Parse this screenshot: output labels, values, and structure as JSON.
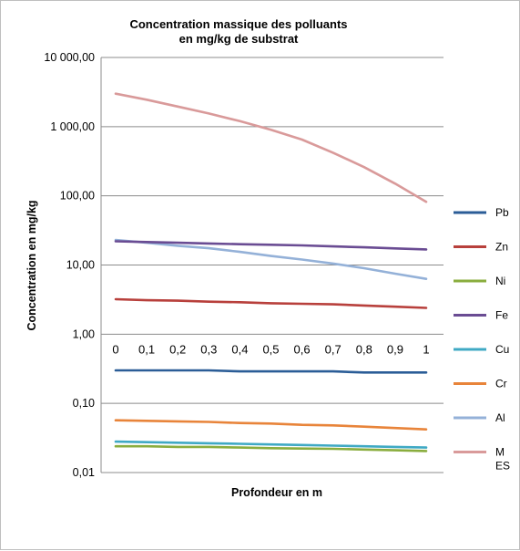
{
  "chart_data": {
    "type": "line",
    "title": "Concentration massique des polluants",
    "subtitle": "en mg/kg de substrat",
    "xlabel": "Profondeur en m",
    "ylabel": "Concentration en mg/kg",
    "y_scale": "log",
    "ylim": [
      0.01,
      10000
    ],
    "y_ticks": [
      10000,
      1000,
      100,
      10,
      1,
      0.1,
      0.01
    ],
    "y_tick_labels": [
      "10 000,00",
      "1 000,00",
      "100,00",
      "10,00",
      "1,00",
      "0,10",
      "0,01"
    ],
    "x_ticks": [
      0,
      0.1,
      0.2,
      0.3,
      0.4,
      0.5,
      0.6,
      0.7,
      0.8,
      0.9,
      1
    ],
    "x_tick_labels": [
      "0",
      "0,1",
      "0,2",
      "0,3",
      "0,4",
      "0,5",
      "0,6",
      "0,7",
      "0,8",
      "0,9",
      "1"
    ],
    "x": [
      0,
      0.1,
      0.2,
      0.3,
      0.4,
      0.5,
      0.6,
      0.7,
      0.8,
      0.9,
      1
    ],
    "grid": true,
    "legend_position": "right",
    "series": [
      {
        "name": "Pb",
        "color": "#2b5d97",
        "values": [
          0.3,
          0.3,
          0.3,
          0.3,
          0.29,
          0.29,
          0.29,
          0.29,
          0.28,
          0.28,
          0.28
        ]
      },
      {
        "name": "Zn",
        "color": "#b8403c",
        "values": [
          3.2,
          3.1,
          3.05,
          2.95,
          2.9,
          2.8,
          2.75,
          2.7,
          2.6,
          2.5,
          2.4
        ]
      },
      {
        "name": "Ni",
        "color": "#8aad3e",
        "values": [
          0.024,
          0.024,
          0.0235,
          0.0235,
          0.023,
          0.0225,
          0.0222,
          0.022,
          0.0215,
          0.021,
          0.0205
        ]
      },
      {
        "name": "Fe",
        "color": "#6a4c93",
        "values": [
          22,
          21.5,
          21,
          20.5,
          20,
          19.6,
          19.2,
          18.6,
          18,
          17.4,
          16.8
        ]
      },
      {
        "name": "Cu",
        "color": "#3fa9c4",
        "values": [
          0.028,
          0.0275,
          0.027,
          0.0265,
          0.026,
          0.0255,
          0.025,
          0.0245,
          0.024,
          0.0235,
          0.023
        ]
      },
      {
        "name": "Cr",
        "color": "#e8843a",
        "values": [
          0.057,
          0.056,
          0.055,
          0.054,
          0.052,
          0.051,
          0.049,
          0.048,
          0.046,
          0.044,
          0.042
        ]
      },
      {
        "name": "Al",
        "color": "#94b1d8",
        "values": [
          23,
          21,
          19,
          17.5,
          15.5,
          13.5,
          12,
          10.5,
          9,
          7.5,
          6.3
        ]
      },
      {
        "name": "MES",
        "color": "#d99a9a",
        "values": [
          3000,
          2450,
          1950,
          1550,
          1200,
          900,
          650,
          420,
          260,
          150,
          82
        ]
      }
    ]
  }
}
